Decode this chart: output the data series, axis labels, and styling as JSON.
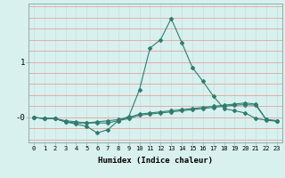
{
  "xlabel": "Humidex (Indice chaleur)",
  "x": [
    0,
    1,
    2,
    3,
    4,
    5,
    6,
    7,
    8,
    9,
    10,
    11,
    12,
    13,
    14,
    15,
    16,
    17,
    18,
    19,
    20,
    21,
    22,
    23
  ],
  "line1": [
    0.0,
    -0.02,
    -0.02,
    -0.08,
    -0.1,
    -0.1,
    -0.1,
    -0.1,
    -0.06,
    -0.02,
    0.04,
    0.06,
    0.08,
    0.1,
    0.12,
    0.14,
    0.16,
    0.18,
    0.2,
    0.22,
    0.23,
    0.22,
    -0.04,
    -0.06
  ],
  "line2": [
    0.0,
    -0.02,
    -0.02,
    -0.08,
    -0.12,
    -0.16,
    -0.28,
    -0.22,
    -0.06,
    0.02,
    0.5,
    1.25,
    1.4,
    1.78,
    1.35,
    0.9,
    0.65,
    0.38,
    0.16,
    0.12,
    0.08,
    -0.02,
    -0.05,
    -0.07
  ],
  "line3": [
    0.0,
    -0.02,
    -0.02,
    -0.06,
    -0.08,
    -0.1,
    -0.08,
    -0.06,
    -0.04,
    0.0,
    0.06,
    0.08,
    0.1,
    0.12,
    0.14,
    0.16,
    0.18,
    0.2,
    0.22,
    0.24,
    0.26,
    0.24,
    -0.04,
    -0.06
  ],
  "line_color": "#2e7d70",
  "bg_color": "#d8f0ee",
  "grid_color_v": "#c8e4e0",
  "grid_color_h": "#e8a0a0",
  "ylim": [
    -0.45,
    2.05
  ],
  "xlim": [
    -0.5,
    23.5
  ]
}
